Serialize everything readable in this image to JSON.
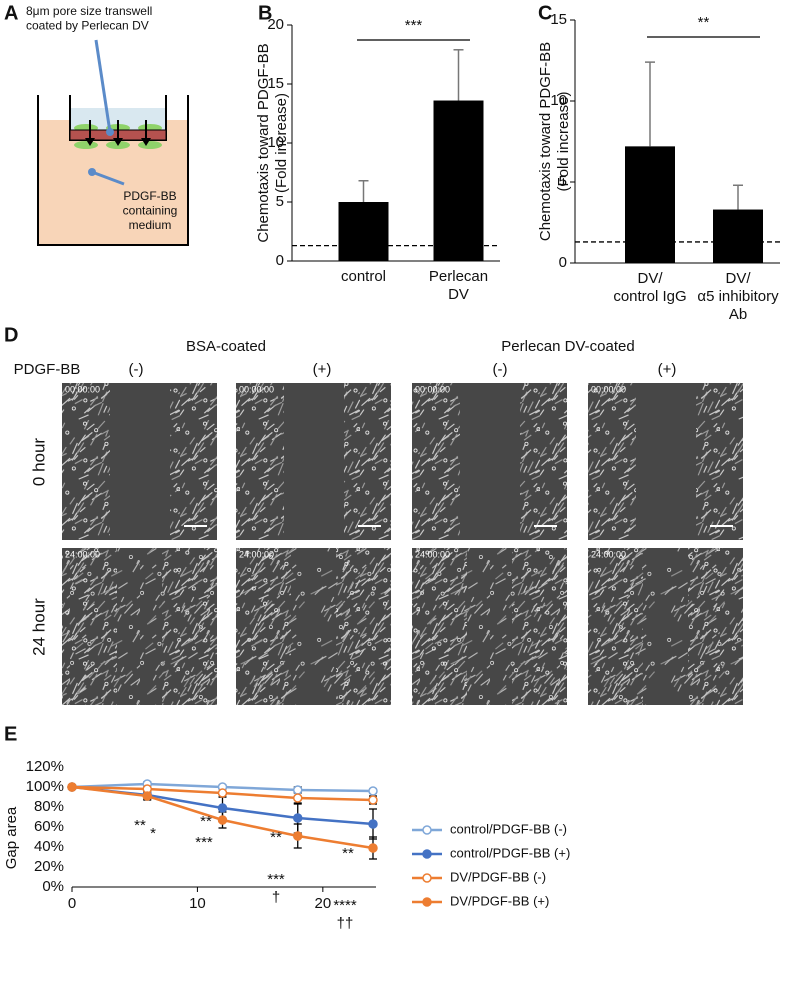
{
  "panel_labels": [
    "A",
    "B",
    "C",
    "D",
    "E"
  ],
  "diagram": {
    "top_label": "8μm pore size transwell\ncoated by Perlecan DV",
    "bottom_label": "PDGF-BB\ncontaining\nmedium"
  },
  "micrographs": {
    "group_headers": [
      "BSA-coated",
      "Perlecan DV-coated"
    ],
    "treatment_label": "PDGF-BB",
    "treatments": [
      "(-)",
      "(+)",
      "(-)",
      "(+)"
    ],
    "rows": [
      "0 hour",
      "24 hour"
    ],
    "timestamps": [
      "00:00:00",
      "24:00:00"
    ]
  },
  "chart_data": [
    {
      "type": "bar",
      "ylabel": "Chemotaxis toward PDGF-BB\n(Fold increase)",
      "categories": [
        "control",
        "Perlecan\nDV"
      ],
      "values": [
        5.0,
        13.6
      ],
      "errors": [
        1.8,
        4.3
      ],
      "color": "#000000",
      "ylim": [
        0,
        20
      ],
      "yticks": [
        0,
        5,
        10,
        15,
        20
      ],
      "reference_line": 1.3,
      "significance": "***"
    },
    {
      "type": "bar",
      "ylabel": "Chemotaxis toward PDGF-BB\n(Fold increase)",
      "categories": [
        "DV/\ncontrol IgG",
        "DV/\nα5 inhibitory\nAb"
      ],
      "values": [
        7.2,
        3.3
      ],
      "errors": [
        5.2,
        1.5
      ],
      "color": "#000000",
      "ylim": [
        0,
        15
      ],
      "yticks": [
        0,
        5,
        10,
        15
      ],
      "reference_line": 1.3,
      "significance": "**"
    },
    {
      "type": "line",
      "ylabel": "Gap area",
      "x": [
        0,
        6,
        12,
        18,
        24
      ],
      "xlim": [
        0,
        24
      ],
      "xticks": [
        0,
        10,
        20
      ],
      "ylim": [
        0,
        120
      ],
      "yticks": [
        {
          "value": 0,
          "label": "0%"
        },
        {
          "value": 20,
          "label": "20%"
        },
        {
          "value": 40,
          "label": "40%"
        },
        {
          "value": 60,
          "label": "60%"
        },
        {
          "value": 80,
          "label": "80%"
        },
        {
          "value": 100,
          "label": "100%"
        },
        {
          "value": 120,
          "label": "120%"
        }
      ],
      "series": [
        {
          "name": "control/PDGF-BB (-)",
          "color": "#7fa7d8",
          "marker": "open",
          "values": [
            100,
            103,
            100,
            97,
            96
          ],
          "errors": [
            1,
            2,
            2,
            3,
            2
          ]
        },
        {
          "name": "control/PDGF-BB (+)",
          "color": "#4472c4",
          "marker": "filled",
          "values": [
            100,
            92,
            79,
            69,
            63
          ],
          "errors": [
            1,
            4,
            11,
            15,
            15
          ]
        },
        {
          "name": "DV/PDGF-BB (-)",
          "color": "#ed7d31",
          "marker": "open",
          "values": [
            100,
            98,
            94,
            89,
            87
          ],
          "errors": [
            1,
            4,
            4,
            6,
            4
          ]
        },
        {
          "name": "DV/PDGF-BB (+)",
          "color": "#ed7d31",
          "marker": "filled",
          "values": [
            100,
            91,
            67,
            51,
            39
          ],
          "errors": [
            1,
            4,
            8,
            12,
            11
          ]
        }
      ],
      "annotations": [
        "**",
        "*",
        "**",
        "***",
        "**",
        "***",
        "†",
        "**",
        "****",
        "††"
      ]
    }
  ]
}
